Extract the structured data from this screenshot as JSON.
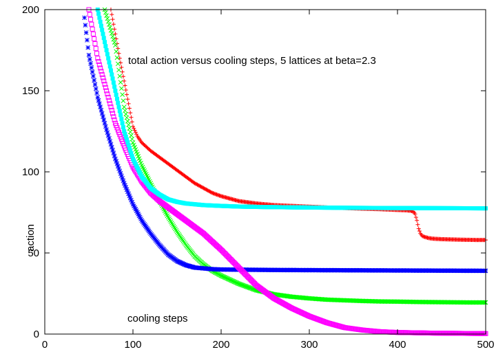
{
  "chart_data": {
    "type": "scatter",
    "title": "total action versus cooling steps, 5 lattices at beta=2.3",
    "xlabel": "cooling steps",
    "ylabel": "action",
    "xlim": [
      0,
      500
    ],
    "ylim": [
      0,
      200
    ],
    "xticks": [
      0,
      100,
      200,
      300,
      400,
      500
    ],
    "yticks": [
      0,
      50,
      100,
      150,
      200
    ],
    "grid": false,
    "legend": "none",
    "series": [
      {
        "color": "#ff0000",
        "marker": "plus",
        "x": [
          75,
          85,
          95,
          100,
          105,
          110,
          120,
          130,
          140,
          150,
          160,
          170,
          180,
          190,
          200,
          220,
          240,
          260,
          280,
          300,
          320,
          340,
          360,
          380,
          400,
          410,
          415,
          418,
          420,
          422,
          424,
          426,
          428,
          430,
          435,
          440,
          450,
          470,
          490,
          500
        ],
        "y": [
          200,
          170,
          142,
          128,
          122,
          118,
          113,
          109,
          105,
          101,
          97,
          93,
          90,
          87,
          85,
          82,
          80.5,
          79.5,
          79,
          78.5,
          78,
          77.7,
          77.3,
          77,
          76.5,
          76.3,
          76,
          75.5,
          74,
          70,
          65,
          62,
          60.5,
          60,
          59.2,
          58.8,
          58.5,
          58.2,
          58,
          58
        ]
      },
      {
        "color": "#00ff00",
        "marker": "cross",
        "x": [
          68,
          80,
          90,
          100,
          110,
          120,
          130,
          140,
          150,
          160,
          170,
          180,
          190,
          200,
          220,
          240,
          260,
          280,
          300,
          320,
          340,
          360,
          380,
          400,
          420,
          440,
          460,
          480,
          500
        ],
        "y": [
          200,
          178,
          140,
          118,
          104,
          93,
          82,
          72,
          63,
          55,
          48,
          43,
          39,
          36,
          31,
          27,
          24.5,
          23,
          22,
          21.2,
          20.8,
          20.4,
          20.1,
          20,
          19.8,
          19.7,
          19.6,
          19.5,
          19.5
        ]
      },
      {
        "color": "#0000ff",
        "marker": "star",
        "x": [
          45,
          50,
          60,
          70,
          80,
          90,
          100,
          110,
          120,
          130,
          140,
          150,
          160,
          170,
          180,
          190,
          200,
          220,
          240,
          260,
          300,
          350,
          400,
          450,
          500
        ],
        "y": [
          195,
          172,
          146,
          126,
          108,
          93,
          80,
          70,
          62,
          55,
          49,
          45,
          42.5,
          41,
          40.5,
          40,
          39.8,
          39.7,
          39.6,
          39.5,
          39.4,
          39.3,
          39.2,
          39.1,
          39
        ]
      },
      {
        "color": "#ff00ff",
        "marker": "square",
        "x": [
          50,
          60,
          70,
          80,
          90,
          100,
          110,
          120,
          130,
          140,
          150,
          160,
          170,
          180,
          190,
          200,
          220,
          240,
          260,
          280,
          300,
          320,
          340,
          360,
          380,
          400,
          420,
          440,
          460,
          480,
          500
        ],
        "y": [
          200,
          170,
          150,
          130,
          116,
          103,
          94,
          87,
          82,
          78,
          74,
          70,
          66,
          62,
          57,
          52,
          41,
          30,
          22,
          16,
          11,
          7,
          4,
          2.5,
          1.5,
          1,
          0.8,
          0.6,
          0.5,
          0.4,
          0.3
        ]
      },
      {
        "color": "#00ffff",
        "marker": "filled-square",
        "x": [
          60,
          70,
          80,
          90,
          100,
          110,
          120,
          130,
          140,
          150,
          160,
          180,
          200,
          220,
          250,
          300,
          350,
          400,
          450,
          500
        ],
        "y": [
          200,
          175,
          150,
          125,
          108,
          97,
          90,
          86,
          83,
          81.5,
          80.5,
          79.5,
          79,
          78.6,
          78.3,
          78,
          77.8,
          77.7,
          77.6,
          77.5
        ]
      }
    ]
  }
}
